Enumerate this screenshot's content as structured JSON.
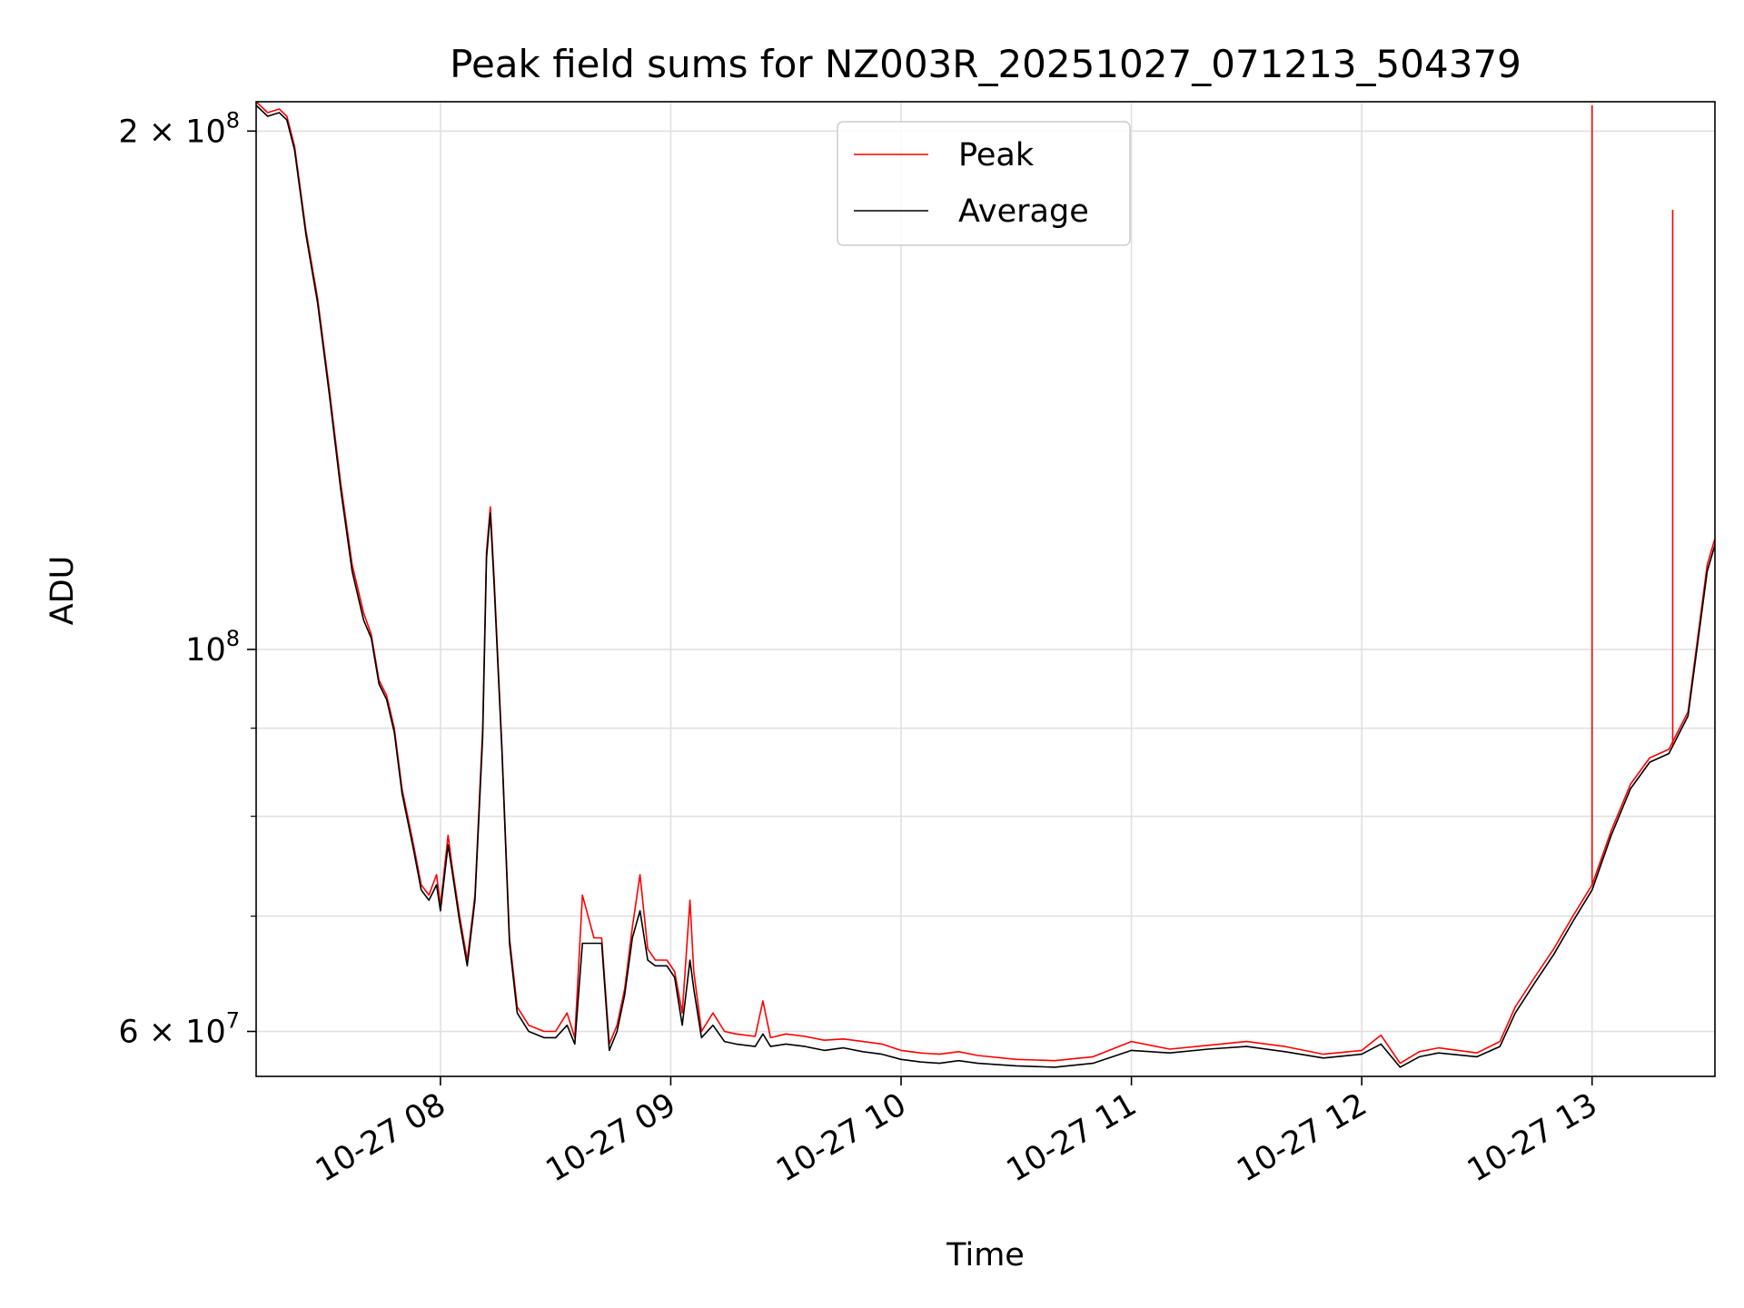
{
  "chart_data": {
    "type": "line",
    "title": "Peak field sums for NZ003R_20251027_071213_504379",
    "xlabel": "Time",
    "ylabel": "ADU",
    "x_ticks": [
      {
        "t": "2025-10-27T08:00",
        "label": "10-27 08"
      },
      {
        "t": "2025-10-27T09:00",
        "label": "10-27 09"
      },
      {
        "t": "2025-10-27T10:00",
        "label": "10-27 10"
      },
      {
        "t": "2025-10-27T11:00",
        "label": "10-27 11"
      },
      {
        "t": "2025-10-27T12:00",
        "label": "10-27 12"
      },
      {
        "t": "2025-10-27T13:00",
        "label": "10-27 13"
      }
    ],
    "y_ticks": [
      {
        "v": 60000000,
        "label": "6 × 10",
        "exp": "7"
      },
      {
        "v": 100000000,
        "label": "10",
        "exp": "8"
      },
      {
        "v": 200000000,
        "label": "2 × 10",
        "exp": "8"
      }
    ],
    "y_minor_ticks": [
      70000000,
      80000000,
      90000000
    ],
    "xlim": [
      "2025-10-27T07:12",
      "2025-10-27T13:32"
    ],
    "ylim": [
      56500000,
      208000000
    ],
    "yscale": "log",
    "grid": true,
    "legend": "upper center",
    "series": [
      {
        "name": "Peak",
        "color": "#ff0000",
        "points": [
          [
            "2025-10-27T07:12",
            208000000
          ],
          [
            "2025-10-27T07:15",
            205000000
          ],
          [
            "2025-10-27T07:18",
            206000000
          ],
          [
            "2025-10-27T07:20",
            204000000
          ],
          [
            "2025-10-27T07:22",
            196000000
          ],
          [
            "2025-10-27T07:25",
            175000000
          ],
          [
            "2025-10-27T07:28",
            160000000
          ],
          [
            "2025-10-27T07:31",
            142000000
          ],
          [
            "2025-10-27T07:34",
            125000000
          ],
          [
            "2025-10-27T07:37",
            112000000
          ],
          [
            "2025-10-27T07:40",
            105000000
          ],
          [
            "2025-10-27T07:42",
            102000000
          ],
          [
            "2025-10-27T07:44",
            96000000
          ],
          [
            "2025-10-27T07:46",
            94000000
          ],
          [
            "2025-10-27T07:48",
            90000000
          ],
          [
            "2025-10-27T07:50",
            83000000
          ],
          [
            "2025-10-27T07:53",
            77000000
          ],
          [
            "2025-10-27T07:55",
            73000000
          ],
          [
            "2025-10-27T07:57",
            72000000
          ],
          [
            "2025-10-27T07:59",
            74000000
          ],
          [
            "2025-10-27T08:00",
            71000000
          ],
          [
            "2025-10-27T08:02",
            78000000
          ],
          [
            "2025-10-27T08:03",
            75000000
          ],
          [
            "2025-10-27T08:05",
            70000000
          ],
          [
            "2025-10-27T08:07",
            66000000
          ],
          [
            "2025-10-27T08:09",
            72000000
          ],
          [
            "2025-10-27T08:11",
            90000000
          ],
          [
            "2025-10-27T08:12",
            114000000
          ],
          [
            "2025-10-27T08:13",
            121000000
          ],
          [
            "2025-10-27T08:14",
            110000000
          ],
          [
            "2025-10-27T08:16",
            88000000
          ],
          [
            "2025-10-27T08:18",
            68000000
          ],
          [
            "2025-10-27T08:20",
            62000000
          ],
          [
            "2025-10-27T08:23",
            60500000
          ],
          [
            "2025-10-27T08:27",
            60000000
          ],
          [
            "2025-10-27T08:30",
            60000000
          ],
          [
            "2025-10-27T08:33",
            61500000
          ],
          [
            "2025-10-27T08:35",
            59500000
          ],
          [
            "2025-10-27T08:37",
            72000000
          ],
          [
            "2025-10-27T08:40",
            68000000
          ],
          [
            "2025-10-27T08:42",
            68000000
          ],
          [
            "2025-10-27T08:44",
            59000000
          ],
          [
            "2025-10-27T08:46",
            60500000
          ],
          [
            "2025-10-27T08:48",
            63500000
          ],
          [
            "2025-10-27T08:50",
            69000000
          ],
          [
            "2025-10-27T08:52",
            74000000
          ],
          [
            "2025-10-27T08:54",
            67000000
          ],
          [
            "2025-10-27T08:56",
            66000000
          ],
          [
            "2025-10-27T08:59",
            66000000
          ],
          [
            "2025-10-27T09:01",
            65000000
          ],
          [
            "2025-10-27T09:03",
            61500000
          ],
          [
            "2025-10-27T09:05",
            71500000
          ],
          [
            "2025-10-27T09:06",
            65000000
          ],
          [
            "2025-10-27T09:08",
            60000000
          ],
          [
            "2025-10-27T09:11",
            61500000
          ],
          [
            "2025-10-27T09:14",
            60000000
          ],
          [
            "2025-10-27T09:17",
            59800000
          ],
          [
            "2025-10-27T09:22",
            59600000
          ],
          [
            "2025-10-27T09:24",
            62500000
          ],
          [
            "2025-10-27T09:26",
            59500000
          ],
          [
            "2025-10-27T09:30",
            59800000
          ],
          [
            "2025-10-27T09:35",
            59600000
          ],
          [
            "2025-10-27T09:40",
            59300000
          ],
          [
            "2025-10-27T09:45",
            59400000
          ],
          [
            "2025-10-27T09:50",
            59200000
          ],
          [
            "2025-10-27T09:55",
            59000000
          ],
          [
            "2025-10-27T10:00",
            58500000
          ],
          [
            "2025-10-27T10:05",
            58300000
          ],
          [
            "2025-10-27T10:10",
            58200000
          ],
          [
            "2025-10-27T10:15",
            58400000
          ],
          [
            "2025-10-27T10:20",
            58100000
          ],
          [
            "2025-10-27T10:30",
            57800000
          ],
          [
            "2025-10-27T10:40",
            57700000
          ],
          [
            "2025-10-27T10:50",
            58000000
          ],
          [
            "2025-10-27T11:00",
            59200000
          ],
          [
            "2025-10-27T11:10",
            58600000
          ],
          [
            "2025-10-27T11:20",
            58900000
          ],
          [
            "2025-10-27T11:30",
            59200000
          ],
          [
            "2025-10-27T11:40",
            58800000
          ],
          [
            "2025-10-27T11:50",
            58200000
          ],
          [
            "2025-10-27T12:00",
            58500000
          ],
          [
            "2025-10-27T12:05",
            59700000
          ],
          [
            "2025-10-27T12:10",
            57500000
          ],
          [
            "2025-10-27T12:15",
            58400000
          ],
          [
            "2025-10-27T12:20",
            58700000
          ],
          [
            "2025-10-27T12:30",
            58300000
          ],
          [
            "2025-10-27T12:36",
            59200000
          ],
          [
            "2025-10-27T12:40",
            62000000
          ],
          [
            "2025-10-27T12:45",
            64500000
          ],
          [
            "2025-10-27T12:50",
            67000000
          ],
          [
            "2025-10-27T12:55",
            70000000
          ],
          [
            "2025-10-27T13:00",
            73000000
          ],
          [
            "2025-10-27T13:05",
            78500000
          ],
          [
            "2025-10-27T13:10",
            83500000
          ],
          [
            "2025-10-27T13:15",
            86500000
          ],
          [
            "2025-10-27T13:20",
            87500000
          ],
          [
            "2025-10-27T13:25",
            92000000
          ],
          [
            "2025-10-27T13:30",
            112000000
          ],
          [
            "2025-10-27T13:32",
            116000000
          ]
        ]
      },
      {
        "name": "Average",
        "color": "#000000",
        "points": [
          [
            "2025-10-27T07:12",
            207000000
          ],
          [
            "2025-10-27T07:15",
            204000000
          ],
          [
            "2025-10-27T07:18",
            205000000
          ],
          [
            "2025-10-27T07:20",
            203000000
          ],
          [
            "2025-10-27T07:22",
            195000000
          ],
          [
            "2025-10-27T07:25",
            174000000
          ],
          [
            "2025-10-27T07:28",
            159000000
          ],
          [
            "2025-10-27T07:31",
            141000000
          ],
          [
            "2025-10-27T07:34",
            124000000
          ],
          [
            "2025-10-27T07:37",
            111000000
          ],
          [
            "2025-10-27T07:40",
            104000000
          ],
          [
            "2025-10-27T07:42",
            101500000
          ],
          [
            "2025-10-27T07:44",
            95500000
          ],
          [
            "2025-10-27T07:46",
            93500000
          ],
          [
            "2025-10-27T07:48",
            89500000
          ],
          [
            "2025-10-27T07:50",
            82500000
          ],
          [
            "2025-10-27T07:53",
            76500000
          ],
          [
            "2025-10-27T07:55",
            72500000
          ],
          [
            "2025-10-27T07:57",
            71500000
          ],
          [
            "2025-10-27T07:59",
            73000000
          ],
          [
            "2025-10-27T08:00",
            70500000
          ],
          [
            "2025-10-27T08:02",
            77000000
          ],
          [
            "2025-10-27T08:03",
            74500000
          ],
          [
            "2025-10-27T08:05",
            69500000
          ],
          [
            "2025-10-27T08:07",
            65500000
          ],
          [
            "2025-10-27T08:09",
            71500000
          ],
          [
            "2025-10-27T08:11",
            89000000
          ],
          [
            "2025-10-27T08:12",
            113000000
          ],
          [
            "2025-10-27T08:13",
            120000000
          ],
          [
            "2025-10-27T08:14",
            109000000
          ],
          [
            "2025-10-27T08:16",
            87500000
          ],
          [
            "2025-10-27T08:18",
            67500000
          ],
          [
            "2025-10-27T08:20",
            61500000
          ],
          [
            "2025-10-27T08:23",
            60000000
          ],
          [
            "2025-10-27T08:27",
            59500000
          ],
          [
            "2025-10-27T08:30",
            59500000
          ],
          [
            "2025-10-27T08:33",
            60500000
          ],
          [
            "2025-10-27T08:35",
            59000000
          ],
          [
            "2025-10-27T08:37",
            67500000
          ],
          [
            "2025-10-27T08:40",
            67500000
          ],
          [
            "2025-10-27T08:42",
            67500000
          ],
          [
            "2025-10-27T08:44",
            58500000
          ],
          [
            "2025-10-27T08:46",
            60000000
          ],
          [
            "2025-10-27T08:48",
            63000000
          ],
          [
            "2025-10-27T08:50",
            68000000
          ],
          [
            "2025-10-27T08:52",
            70500000
          ],
          [
            "2025-10-27T08:54",
            66000000
          ],
          [
            "2025-10-27T08:56",
            65500000
          ],
          [
            "2025-10-27T08:59",
            65500000
          ],
          [
            "2025-10-27T09:01",
            64500000
          ],
          [
            "2025-10-27T09:03",
            60500000
          ],
          [
            "2025-10-27T09:05",
            66000000
          ],
          [
            "2025-10-27T09:06",
            63500000
          ],
          [
            "2025-10-27T09:08",
            59500000
          ],
          [
            "2025-10-27T09:11",
            60500000
          ],
          [
            "2025-10-27T09:14",
            59200000
          ],
          [
            "2025-10-27T09:17",
            59000000
          ],
          [
            "2025-10-27T09:22",
            58800000
          ],
          [
            "2025-10-27T09:24",
            59800000
          ],
          [
            "2025-10-27T09:26",
            58800000
          ],
          [
            "2025-10-27T09:30",
            59000000
          ],
          [
            "2025-10-27T09:35",
            58800000
          ],
          [
            "2025-10-27T09:40",
            58500000
          ],
          [
            "2025-10-27T09:45",
            58700000
          ],
          [
            "2025-10-27T09:50",
            58400000
          ],
          [
            "2025-10-27T09:55",
            58200000
          ],
          [
            "2025-10-27T10:00",
            57800000
          ],
          [
            "2025-10-27T10:05",
            57600000
          ],
          [
            "2025-10-27T10:10",
            57500000
          ],
          [
            "2025-10-27T10:15",
            57700000
          ],
          [
            "2025-10-27T10:20",
            57500000
          ],
          [
            "2025-10-27T10:30",
            57300000
          ],
          [
            "2025-10-27T10:40",
            57200000
          ],
          [
            "2025-10-27T10:50",
            57500000
          ],
          [
            "2025-10-27T11:00",
            58500000
          ],
          [
            "2025-10-27T11:10",
            58300000
          ],
          [
            "2025-10-27T11:20",
            58600000
          ],
          [
            "2025-10-27T11:30",
            58800000
          ],
          [
            "2025-10-27T11:40",
            58400000
          ],
          [
            "2025-10-27T11:50",
            57900000
          ],
          [
            "2025-10-27T12:00",
            58200000
          ],
          [
            "2025-10-27T12:05",
            59000000
          ],
          [
            "2025-10-27T12:10",
            57200000
          ],
          [
            "2025-10-27T12:15",
            58000000
          ],
          [
            "2025-10-27T12:20",
            58300000
          ],
          [
            "2025-10-27T12:30",
            58000000
          ],
          [
            "2025-10-27T12:36",
            58800000
          ],
          [
            "2025-10-27T12:40",
            61500000
          ],
          [
            "2025-10-27T12:45",
            64000000
          ],
          [
            "2025-10-27T12:50",
            66500000
          ],
          [
            "2025-10-27T12:55",
            69500000
          ],
          [
            "2025-10-27T13:00",
            72500000
          ],
          [
            "2025-10-27T13:05",
            78000000
          ],
          [
            "2025-10-27T13:10",
            83000000
          ],
          [
            "2025-10-27T13:15",
            86000000
          ],
          [
            "2025-10-27T13:20",
            87000000
          ],
          [
            "2025-10-27T13:25",
            91500000
          ],
          [
            "2025-10-27T13:30",
            111000000
          ],
          [
            "2025-10-27T13:32",
            115000000
          ]
        ]
      }
    ],
    "spikes": [
      {
        "series": "Peak",
        "t": "2025-10-27T13:00",
        "base": 73000000,
        "top": 207000000
      },
      {
        "series": "Peak",
        "t": "2025-10-27T13:21",
        "base": 88000000,
        "top": 180000000
      }
    ]
  }
}
